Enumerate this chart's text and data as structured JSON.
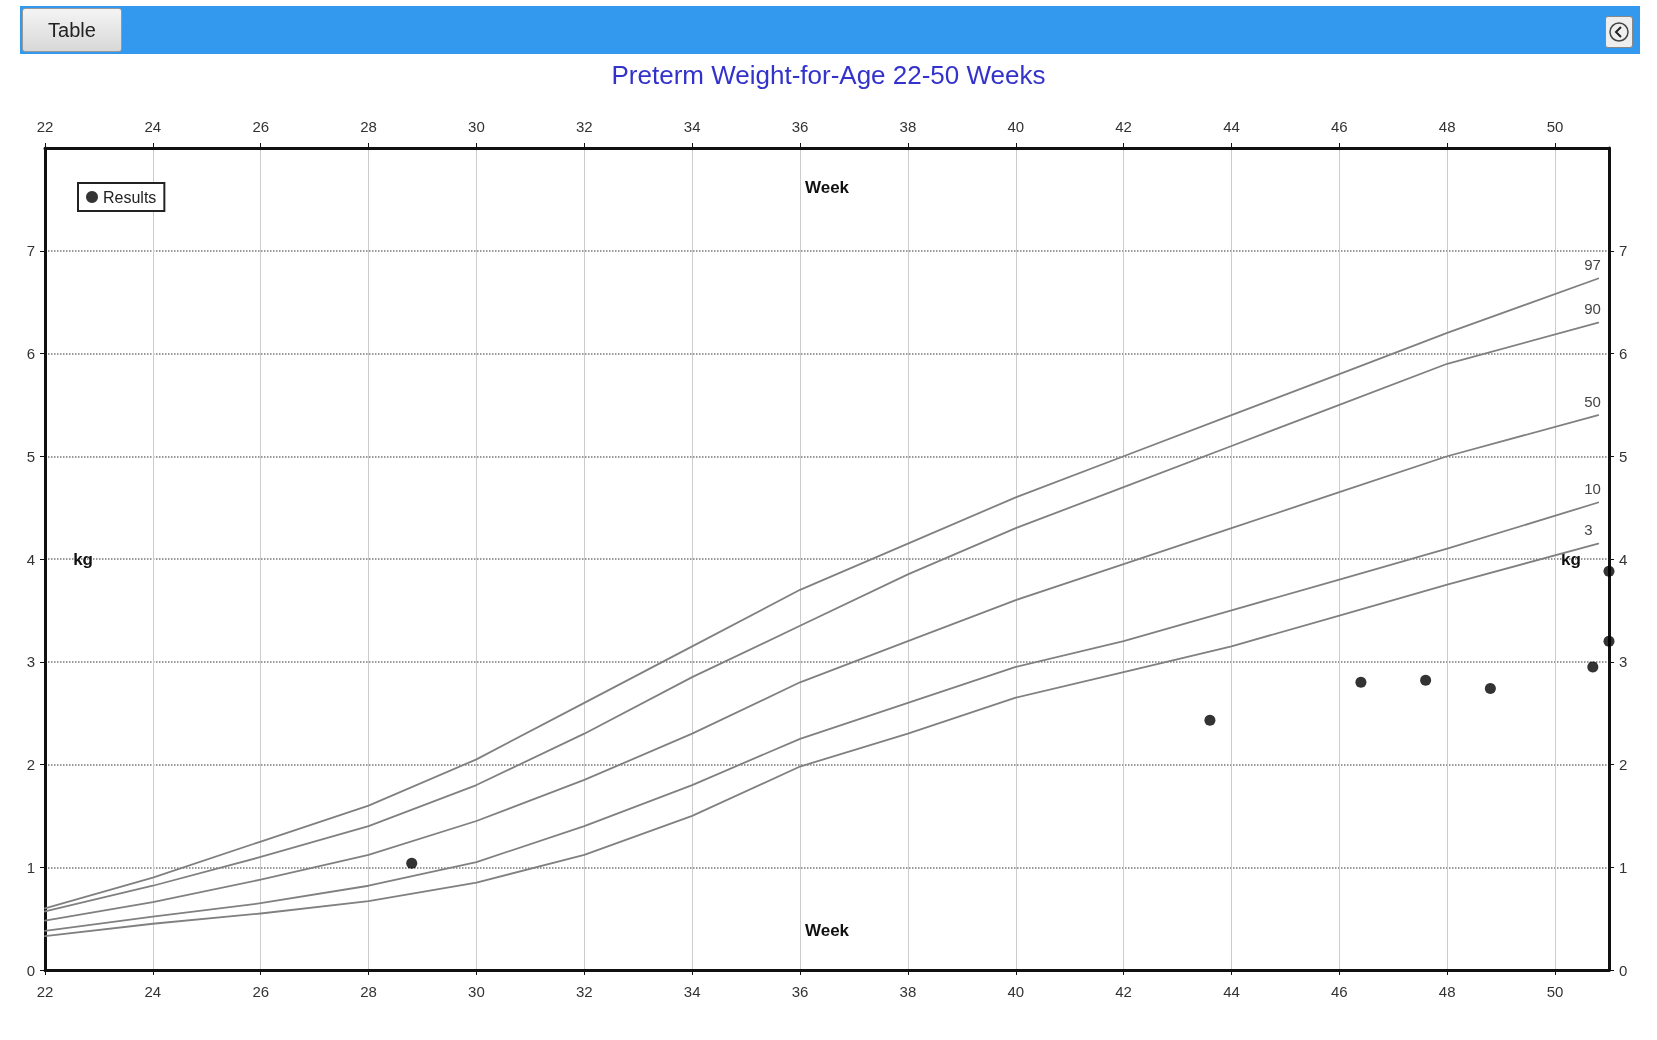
{
  "chart_data": {
    "type": "line",
    "title": "Preterm Weight-for-Age 22-50 Weeks",
    "xlabel": "Week",
    "x2label": "Week",
    "ylabel": "kg",
    "y2label": "kg",
    "x": [
      22,
      24,
      26,
      28,
      30,
      32,
      34,
      36,
      38,
      40,
      42,
      44,
      46,
      48,
      50.8
    ],
    "series": [
      {
        "name": "97",
        "color": "#808080",
        "marker": "none",
        "values": [
          0.6,
          0.9,
          1.25,
          1.6,
          2.05,
          2.6,
          3.15,
          3.7,
          4.15,
          4.6,
          5.0,
          5.4,
          5.8,
          6.2,
          6.73
        ]
      },
      {
        "name": "90",
        "color": "#808080",
        "marker": "none",
        "values": [
          0.57,
          0.82,
          1.1,
          1.4,
          1.8,
          2.3,
          2.85,
          3.35,
          3.85,
          4.3,
          4.7,
          5.1,
          5.5,
          5.9,
          6.3
        ]
      },
      {
        "name": "50",
        "color": "#808080",
        "marker": "none",
        "values": [
          0.48,
          0.66,
          0.88,
          1.12,
          1.45,
          1.85,
          2.3,
          2.8,
          3.2,
          3.6,
          3.95,
          4.3,
          4.65,
          5.0,
          5.4
        ]
      },
      {
        "name": "10",
        "color": "#808080",
        "marker": "none",
        "values": [
          0.38,
          0.52,
          0.65,
          0.82,
          1.05,
          1.4,
          1.8,
          2.25,
          2.6,
          2.95,
          3.2,
          3.5,
          3.8,
          4.1,
          4.55
        ]
      },
      {
        "name": "3",
        "color": "#808080",
        "marker": "none",
        "values": [
          0.33,
          0.45,
          0.55,
          0.67,
          0.85,
          1.12,
          1.5,
          1.98,
          2.3,
          2.65,
          2.9,
          3.15,
          3.45,
          3.75,
          4.15
        ]
      },
      {
        "name": "Results",
        "type": "scatter",
        "color": "#000000",
        "marker": "circle",
        "x": [
          28.8,
          43.6,
          46.4,
          47.6,
          48.8,
          50.7,
          51.0,
          51.0
        ],
        "values": [
          1.04,
          2.43,
          2.8,
          2.82,
          2.74,
          2.95,
          3.2,
          3.88
        ]
      }
    ],
    "xlim": [
      22,
      51
    ],
    "xticks": [
      22,
      24,
      26,
      28,
      30,
      32,
      34,
      36,
      38,
      40,
      42,
      44,
      46,
      48,
      50
    ],
    "x2lim": [
      22,
      51
    ],
    "x2ticks": [
      22,
      24,
      26,
      28,
      30,
      32,
      34,
      36,
      38,
      40,
      42,
      44,
      46,
      48,
      50
    ],
    "ylim": [
      0,
      8
    ],
    "yticks": [
      0,
      1,
      2,
      3,
      4,
      5,
      6,
      7
    ],
    "y2lim": [
      0,
      8
    ],
    "y2ticks": [
      0,
      1,
      2,
      3,
      4,
      5,
      6,
      7
    ],
    "grid": true,
    "legend": "top left",
    "line_style": "solid",
    "annotations": [
      "Table"
    ]
  }
}
